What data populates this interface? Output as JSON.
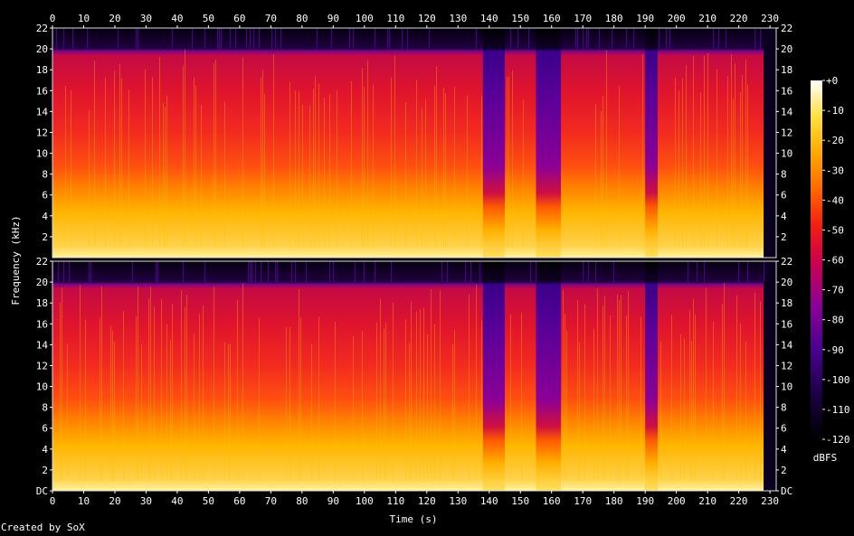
{
  "chart_data": {
    "type": "heatmap",
    "title": "",
    "xlabel": "Time (s)",
    "ylabel": "Frequency (kHz)",
    "x_ticks": [
      "0",
      "10",
      "20",
      "30",
      "40",
      "50",
      "60",
      "70",
      "80",
      "90",
      "100",
      "110",
      "120",
      "130",
      "140",
      "150",
      "160",
      "170",
      "180",
      "190",
      "200",
      "210",
      "220",
      "230"
    ],
    "y_ticks_top": [
      "2",
      "4",
      "6",
      "8",
      "10",
      "12",
      "14",
      "16",
      "18",
      "20",
      "22"
    ],
    "y_ticks_bottom": [
      "DC",
      "2",
      "4",
      "6",
      "8",
      "10",
      "12",
      "14",
      "16",
      "18",
      "20",
      "22"
    ],
    "xlim": [
      0,
      232
    ],
    "ylim_khz": [
      0,
      22
    ],
    "channels": 2,
    "lowpass_cutoff_khz": 20,
    "audio_end_s": 228,
    "quiet_segments_s": [
      [
        138,
        145
      ],
      [
        155,
        163
      ],
      [
        190,
        194
      ]
    ],
    "colorbar": {
      "label": "dBFS",
      "ticks": [
        "+0",
        "-10",
        "-20",
        "-30",
        "-40",
        "-50",
        "-60",
        "-70",
        "-80",
        "-90",
        "-100",
        "-110",
        "-120"
      ],
      "range_db": [
        -120,
        0
      ]
    },
    "colormap": [
      "#000000",
      "#22004a",
      "#4a0090",
      "#8a0098",
      "#c20060",
      "#ee1028",
      "#ff5000",
      "#ff9a00",
      "#ffd000",
      "#fff070",
      "#ffffff"
    ]
  },
  "footer": {
    "credit": "Created by SoX"
  }
}
